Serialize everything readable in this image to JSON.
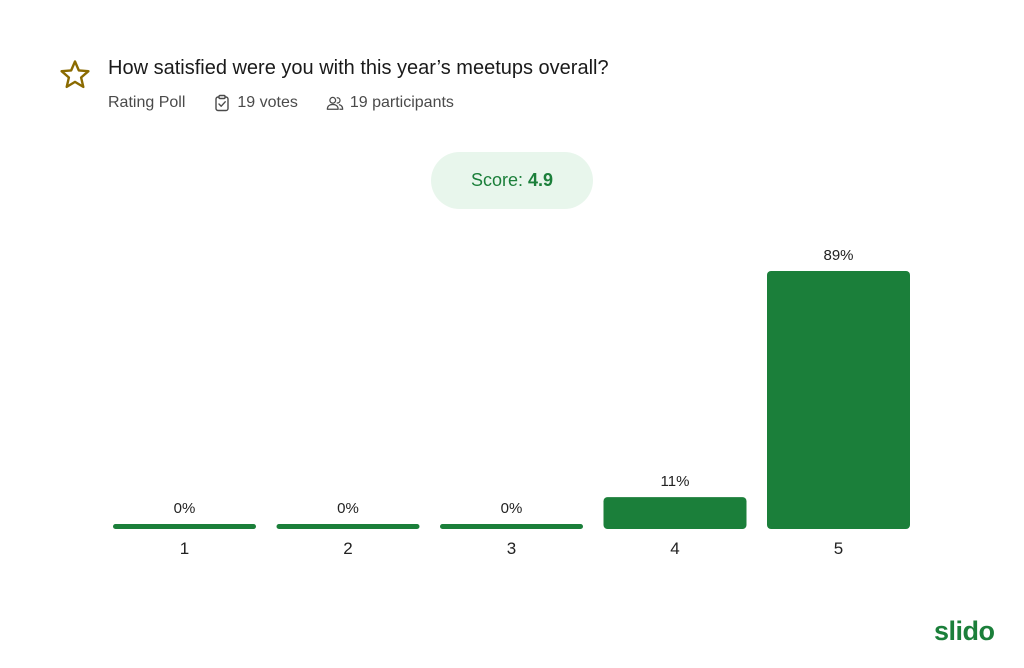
{
  "poll": {
    "question": "How satisfied were you with this year’s meetups overall?",
    "type_label": "Rating Poll",
    "votes_label": "19 votes",
    "participants_label": "19 participants",
    "score_label": "Score:",
    "score_value": "4.9"
  },
  "icons": {
    "poll_type": "star-icon",
    "votes": "clipboard-check-icon",
    "participants": "users-icon"
  },
  "colors": {
    "accent": "#1b7f3a",
    "bar": "#1b7f3a",
    "score_pill_bg": "#e8f6ec",
    "star_outline": "#8a6a00"
  },
  "brand": {
    "logo_text": "slido"
  },
  "chart_data": {
    "type": "bar",
    "categories": [
      "1",
      "2",
      "3",
      "4",
      "5"
    ],
    "values": [
      0,
      0,
      0,
      11,
      89
    ],
    "value_labels": [
      "0%",
      "0%",
      "0%",
      "11%",
      "89%"
    ],
    "unit": "%",
    "ylim": [
      0,
      89
    ],
    "grid": false,
    "legend": "none"
  }
}
